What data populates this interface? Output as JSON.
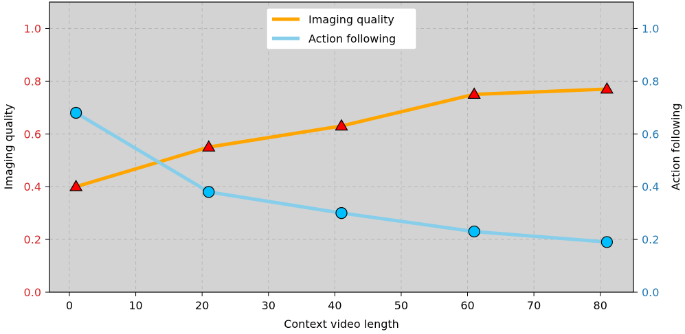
{
  "chart_data": {
    "type": "line",
    "title": "",
    "xlabel": "Context video length",
    "ylabel_left": "Imaging quality",
    "ylabel_right": "Action following",
    "x": [
      1,
      21,
      41,
      61,
      81
    ],
    "xlim": [
      -3,
      85
    ],
    "xticks": [
      0,
      10,
      20,
      30,
      40,
      50,
      60,
      70,
      80
    ],
    "ylim": [
      0.0,
      1.1
    ],
    "yticks": [
      0.0,
      0.2,
      0.4,
      0.6,
      0.8,
      1.0
    ],
    "ytick_labels": [
      "0.0",
      "0.2",
      "0.4",
      "0.6",
      "0.8",
      "1.0"
    ],
    "grid": true,
    "legend_position": "upper-center",
    "series": [
      {
        "name": "Imaging quality",
        "axis": "left",
        "values": [
          0.4,
          0.55,
          0.63,
          0.75,
          0.77
        ],
        "line_color": "#FFA500",
        "marker": "triangle",
        "marker_color": "#FF0000"
      },
      {
        "name": "Action following",
        "axis": "right",
        "values": [
          0.68,
          0.38,
          0.3,
          0.23,
          0.19
        ],
        "line_color": "#87CEEB",
        "marker": "circle",
        "marker_color": "#00BFFF"
      }
    ],
    "colors": {
      "plot_background": "#D3D3D3",
      "left_axis_color": "#D62728",
      "right_axis_color": "#1F77B4",
      "grid_color": "#B8B8B8"
    }
  }
}
